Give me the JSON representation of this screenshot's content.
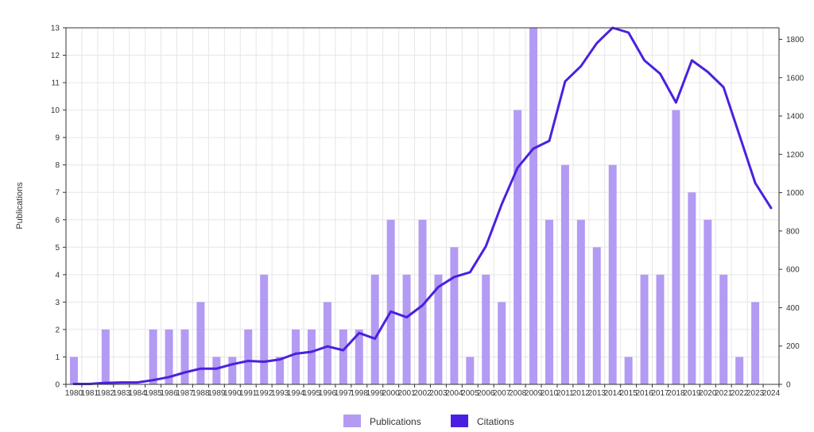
{
  "colors": {
    "publications": "#b39af2",
    "citations": "#4a20e0",
    "grid": "#e6e6e6",
    "axis": "#333333"
  },
  "legend": {
    "publications_label": "Publications",
    "citations_label": "Citations"
  },
  "chart_data": {
    "type": "bar",
    "ylabel": "Publications",
    "y2label": "",
    "ylim": [
      0,
      13
    ],
    "y2lim": [
      0,
      1860
    ],
    "y_ticks": [
      0,
      1,
      2,
      3,
      4,
      5,
      6,
      7,
      8,
      9,
      10,
      11,
      12,
      13
    ],
    "y2_ticks": [
      0,
      200,
      400,
      600,
      800,
      1000,
      1200,
      1400,
      1600,
      1800
    ],
    "grid": true,
    "legend_position": "bottom",
    "categories": [
      "1980",
      "1981",
      "1982",
      "1983",
      "1984",
      "1985",
      "1986",
      "1987",
      "1988",
      "1989",
      "1990",
      "1991",
      "1992",
      "1993",
      "1994",
      "1995",
      "1996",
      "1997",
      "1998",
      "1999",
      "2000",
      "2001",
      "2002",
      "2003",
      "2004",
      "2005",
      "2006",
      "2007",
      "2008",
      "2009",
      "2010",
      "2011",
      "2012",
      "2013",
      "2014",
      "2015",
      "2016",
      "2017",
      "2018",
      "2019",
      "2020",
      "2021",
      "2022",
      "2023",
      "2024"
    ],
    "series": [
      {
        "name": "Publications",
        "type": "bar",
        "axis": "left",
        "values": [
          1,
          0,
          2,
          0,
          0,
          2,
          2,
          2,
          3,
          1,
          1,
          2,
          4,
          1,
          2,
          2,
          3,
          2,
          2,
          4,
          6,
          4,
          6,
          4,
          5,
          1,
          4,
          3,
          10,
          13,
          6,
          8,
          6,
          5,
          8,
          1,
          4,
          4,
          10,
          7,
          6,
          4,
          1,
          3,
          0
        ]
      },
      {
        "name": "Citations",
        "type": "line",
        "axis": "right",
        "values": [
          2,
          2,
          8,
          10,
          10,
          22,
          38,
          62,
          82,
          82,
          105,
          122,
          118,
          130,
          160,
          170,
          198,
          178,
          268,
          238,
          380,
          350,
          412,
          508,
          560,
          585,
          720,
          940,
          1130,
          1230,
          1270,
          1580,
          1660,
          1780,
          1860,
          1835,
          1690,
          1620,
          1470,
          1690,
          1630,
          1550,
          1300,
          1050,
          920
        ]
      }
    ]
  }
}
